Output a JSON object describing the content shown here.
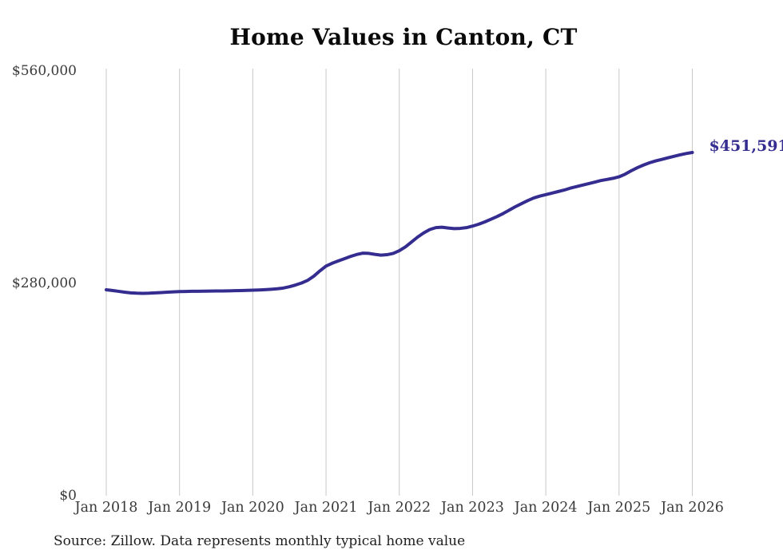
{
  "chart_data": {
    "type": "line",
    "title": "Home Values in Canton, CT",
    "source_note": "Source: Zillow. Data represents monthly typical home value",
    "end_label": "$451,591",
    "end_value": 451591,
    "line_color": "#342c8f",
    "grid_color": "#c9c9c9",
    "tick_label_color": "#3a3a3a",
    "title_color": "#0a0a0a",
    "x_tick_labels": [
      "Jan 2018",
      "Jan 2019",
      "Jan 2020",
      "Jan 2021",
      "Jan 2022",
      "Jan 2023",
      "Jan 2024",
      "Jan 2025",
      "Jan 2026"
    ],
    "y_ticks": [
      {
        "value": 0,
        "label": "$0"
      },
      {
        "value": 280000,
        "label": "$280,000"
      },
      {
        "value": 560000,
        "label": "$560,000"
      }
    ],
    "ylim": [
      0,
      560000
    ],
    "grid": "vertical-only",
    "legend": "none",
    "x_start_month": "Jan 2018",
    "x_end_month": "Jan 2026",
    "series": [
      {
        "name": "Typical home value",
        "frequency": "monthly",
        "values": [
          270500,
          269600,
          268500,
          267400,
          266500,
          266000,
          265800,
          266000,
          266400,
          266900,
          267400,
          267800,
          268100,
          268300,
          268500,
          268600,
          268700,
          268800,
          268900,
          269000,
          269100,
          269300,
          269500,
          269800,
          270000,
          270300,
          270700,
          271200,
          271800,
          272800,
          274500,
          276800,
          279500,
          283000,
          288500,
          295500,
          301800,
          305500,
          308500,
          311500,
          314500,
          317000,
          318800,
          318500,
          317200,
          316200,
          316800,
          318500,
          322000,
          327000,
          333500,
          340000,
          345500,
          350000,
          352500,
          353000,
          352000,
          351200,
          351500,
          352500,
          354500,
          357000,
          360000,
          363500,
          367000,
          371000,
          375500,
          380000,
          384000,
          388000,
          391500,
          394000,
          396000,
          398000,
          400000,
          402000,
          404500,
          406500,
          408500,
          410500,
          412500,
          414500,
          416000,
          417500,
          419500,
          423000,
          427500,
          431500,
          435000,
          438000,
          440500,
          442500,
          444500,
          446500,
          448500,
          450200,
          451591
        ]
      }
    ]
  }
}
